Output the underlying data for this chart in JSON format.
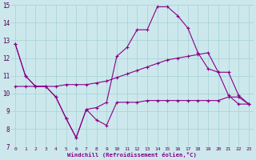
{
  "xlabel": "Windchill (Refroidissement éolien,°C)",
  "background_color": "#cce8ec",
  "grid_color": "#aad4d8",
  "line_color": "#880088",
  "hours": [
    0,
    1,
    2,
    3,
    4,
    5,
    6,
    7,
    8,
    9,
    10,
    11,
    12,
    13,
    14,
    15,
    16,
    17,
    18,
    19,
    20,
    21,
    22,
    23
  ],
  "temp": [
    12.8,
    11.0,
    10.4,
    10.4,
    9.8,
    8.6,
    7.5,
    9.1,
    9.2,
    9.5,
    12.1,
    12.6,
    13.6,
    13.6,
    14.9,
    14.9,
    14.4,
    13.7,
    12.3,
    11.4,
    11.2,
    9.9,
    9.4,
    9.4
  ],
  "windchill": [
    12.8,
    11.0,
    10.4,
    10.4,
    9.8,
    8.6,
    7.5,
    9.1,
    8.5,
    8.2,
    9.5,
    9.5,
    9.5,
    9.6,
    9.6,
    9.6,
    9.6,
    9.6,
    9.6,
    9.6,
    9.6,
    9.8,
    9.8,
    9.4
  ],
  "smooth": [
    10.4,
    10.4,
    10.4,
    10.4,
    10.4,
    10.5,
    10.5,
    10.5,
    10.6,
    10.7,
    10.9,
    11.1,
    11.3,
    11.5,
    11.7,
    11.9,
    12.0,
    12.1,
    12.2,
    12.3,
    11.2,
    11.2,
    9.9,
    9.4
  ],
  "ylim": [
    7,
    15
  ],
  "yticks": [
    7,
    8,
    9,
    10,
    11,
    12,
    13,
    14,
    15
  ],
  "xlim": [
    -0.5,
    23.5
  ]
}
